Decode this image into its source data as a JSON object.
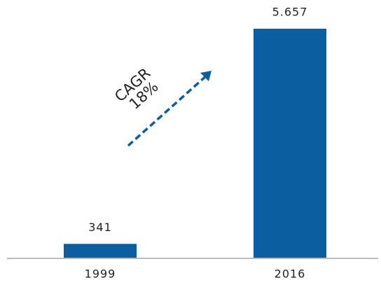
{
  "chart_data": {
    "type": "bar",
    "categories": [
      "1999",
      "2016"
    ],
    "values": [
      341,
      5657
    ],
    "value_labels": [
      "341",
      "5.657"
    ],
    "color": "#0b5e9f",
    "annotations": [
      "CAGR",
      "18%"
    ]
  }
}
